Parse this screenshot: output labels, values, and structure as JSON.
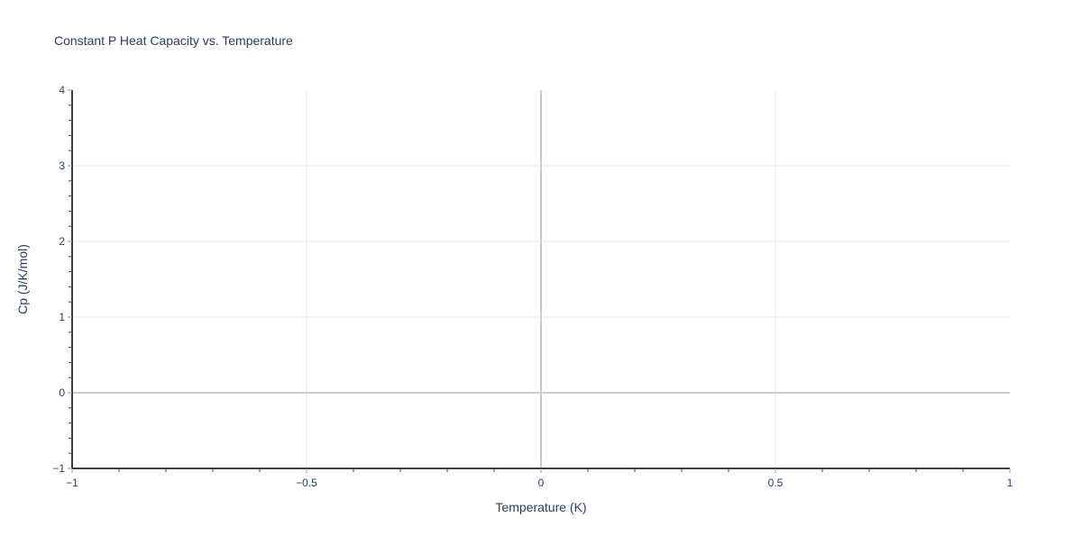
{
  "chart_data": {
    "type": "line",
    "title": "Constant P Heat Capacity vs. Temperature",
    "xlabel": "Temperature (K)",
    "ylabel": "Cp (J/K/mol)",
    "xlim": [
      -1,
      1
    ],
    "ylim": [
      -1,
      4
    ],
    "xticks": [
      -1,
      -0.5,
      0,
      0.5,
      1
    ],
    "xtick_labels": [
      "−1",
      "−0.5",
      "0",
      "0.5",
      "1"
    ],
    "yticks": [
      -1,
      0,
      1,
      2,
      3,
      4
    ],
    "ytick_labels": [
      "−1",
      "0",
      "1",
      "2",
      "3",
      "4"
    ],
    "x_minor_step": 0.1,
    "y_minor_step": 0.2,
    "grid": true,
    "series": [],
    "colors": {
      "grid": "#e8e8e8",
      "zeroline": "#cccccc",
      "axis": "#000000",
      "text": "#2a3f5f"
    }
  }
}
